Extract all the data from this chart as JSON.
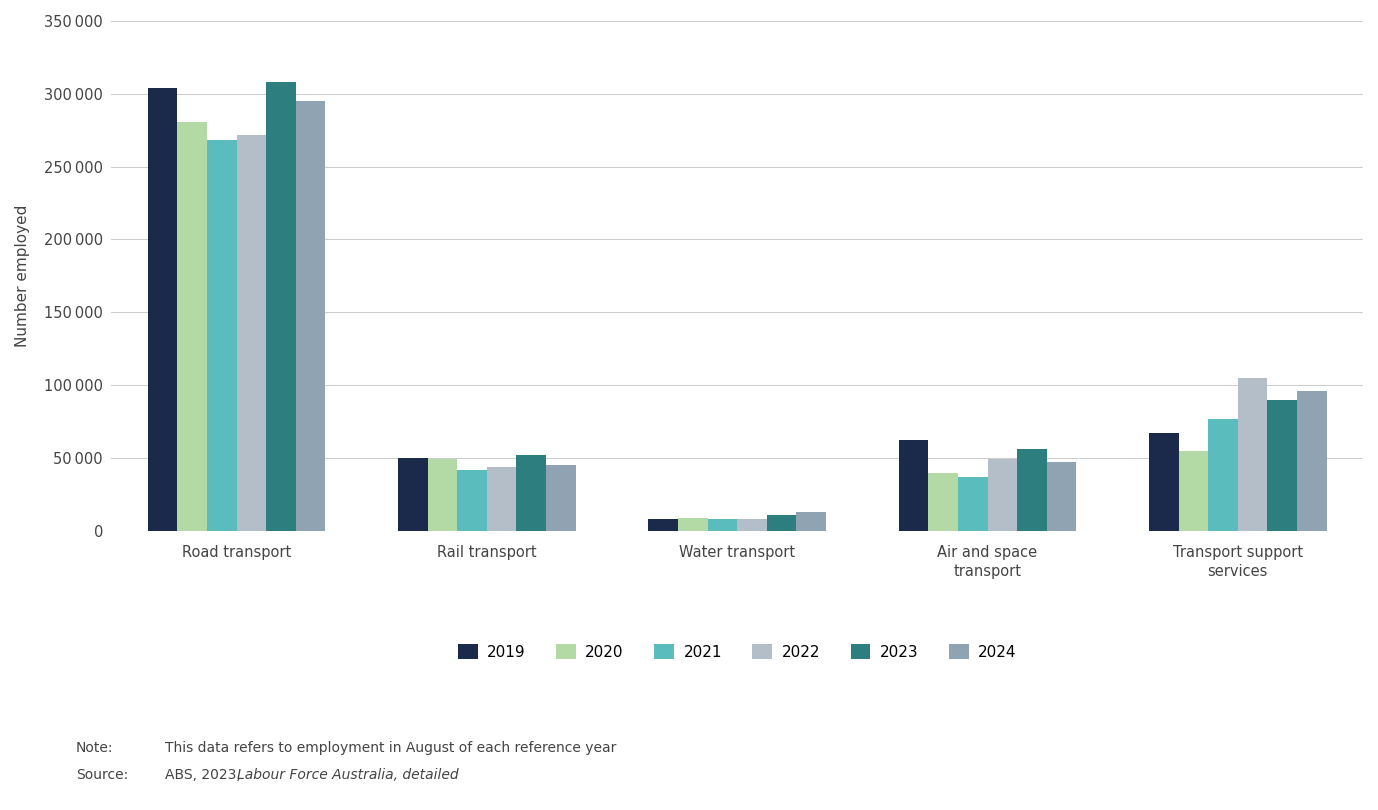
{
  "categories": [
    "Road transport",
    "Rail transport",
    "Water transport",
    "Air and space\ntransport",
    "Transport support\nservices"
  ],
  "years": [
    "2019",
    "2020",
    "2021",
    "2022",
    "2023",
    "2024"
  ],
  "values": {
    "Road transport": [
      304000,
      281000,
      268000,
      272000,
      308000,
      295000
    ],
    "Rail transport": [
      50000,
      49000,
      42000,
      44000,
      52000,
      45000
    ],
    "Water transport": [
      8000,
      9000,
      8000,
      8000,
      11000,
      13000
    ],
    "Air and space\ntransport": [
      62000,
      40000,
      37000,
      49000,
      56000,
      47000
    ],
    "Transport support\nservices": [
      67000,
      55000,
      77000,
      105000,
      90000,
      96000
    ]
  },
  "colors": [
    "#1b2a4a",
    "#b3d9a4",
    "#5bbcbe",
    "#b3bec8",
    "#2d7f7f",
    "#8fa3b2"
  ],
  "ylabel": "Number employed",
  "ylim": [
    0,
    350000
  ],
  "yticks": [
    0,
    50000,
    100000,
    150000,
    200000,
    250000,
    300000,
    350000
  ],
  "background_color": "#ffffff",
  "grid_color": "#cccccc",
  "note_label": "Note:",
  "note_text": "This data refers to employment in August of each reference year",
  "source_label": "Source:",
  "source_prefix": "ABS, 2023, ",
  "source_italic": "Labour Force Australia, detailed",
  "note_color": "#444444",
  "text_color": "#444444"
}
